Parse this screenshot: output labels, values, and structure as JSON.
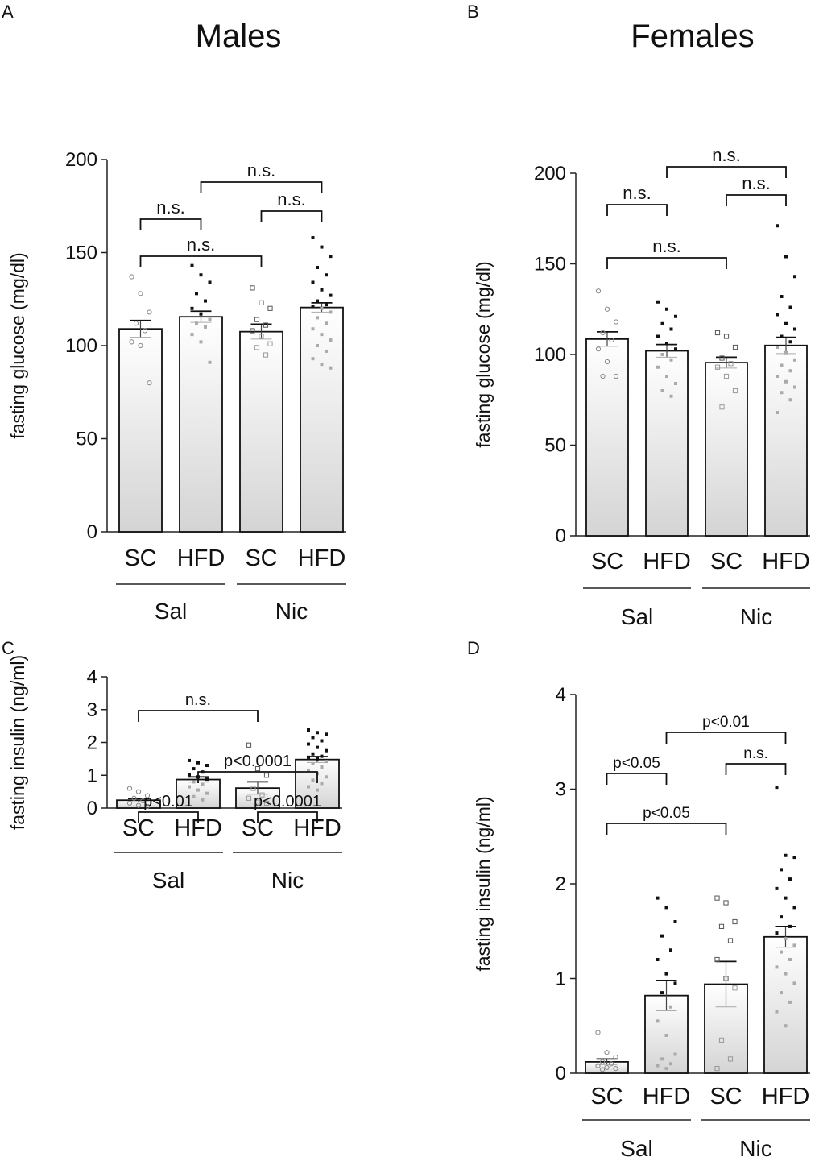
{
  "figure": {
    "column_titles": [
      "Males",
      "Females"
    ]
  },
  "chart_data": [
    {
      "panel": "A",
      "type": "bar",
      "title": "Males",
      "ylabel": "fasting glucose (mg/dl)",
      "ylim": [
        0,
        200
      ],
      "yticks": [
        "0",
        "50",
        "100",
        "150",
        "200"
      ],
      "categories": [
        "SC",
        "HFD",
        "SC",
        "HFD"
      ],
      "groups": [
        {
          "label": "Sal",
          "span": [
            0,
            1
          ]
        },
        {
          "label": "Nic",
          "span": [
            2,
            3
          ]
        }
      ],
      "values": [
        109,
        115.5,
        107.5,
        120.5
      ],
      "sem": [
        4.5,
        3,
        4,
        2.5
      ],
      "points": [
        [
          137,
          128,
          118,
          112,
          108,
          102,
          100,
          80
        ],
        [
          143,
          138,
          134,
          128,
          124,
          120,
          117,
          114,
          112,
          110,
          106,
          102,
          91
        ],
        [
          131,
          123,
          120,
          114,
          111,
          108,
          105,
          101,
          99,
          95
        ],
        [
          158,
          153,
          148,
          142,
          138,
          134,
          130,
          127,
          124,
          122,
          121,
          120,
          118,
          115,
          112,
          109,
          106,
          103,
          100,
          97,
          93,
          90,
          88
        ]
      ],
      "brackets": [
        {
          "from": 1,
          "to": 3,
          "label": "n.s."
        },
        {
          "from": 0,
          "to": 1,
          "label": "n.s."
        },
        {
          "from": 2,
          "to": 3,
          "label": "n.s."
        },
        {
          "from": 0,
          "to": 2,
          "label": "n.s."
        }
      ]
    },
    {
      "panel": "B",
      "type": "bar",
      "title": "Females",
      "ylabel": "fasting glucose (mg/dl)",
      "ylim": [
        0,
        200
      ],
      "yticks": [
        "0",
        "50",
        "100",
        "150",
        "200"
      ],
      "categories": [
        "SC",
        "HFD",
        "SC",
        "HFD"
      ],
      "groups": [
        {
          "label": "Sal",
          "span": [
            0,
            1
          ]
        },
        {
          "label": "Nic",
          "span": [
            2,
            3
          ]
        }
      ],
      "values": [
        108.5,
        102,
        95.5,
        105
      ],
      "sem": [
        4,
        3.5,
        3,
        4.5
      ],
      "points": [
        [
          135,
          125,
          118,
          112,
          108,
          103,
          96,
          88,
          88
        ],
        [
          129,
          125,
          121,
          117,
          114,
          110,
          106,
          103,
          100,
          97,
          93,
          88,
          84,
          80,
          77
        ],
        [
          112,
          110,
          104,
          98,
          95,
          93,
          88,
          80,
          71
        ],
        [
          171,
          154,
          143,
          132,
          126,
          122,
          117,
          114,
          110,
          107,
          104,
          101,
          97,
          94,
          91,
          88,
          85,
          82,
          79,
          75,
          68
        ]
      ],
      "brackets": [
        {
          "from": 1,
          "to": 3,
          "label": "n.s."
        },
        {
          "from": 0,
          "to": 1,
          "label": "n.s."
        },
        {
          "from": 2,
          "to": 3,
          "label": "n.s."
        },
        {
          "from": 0,
          "to": 2,
          "label": "n.s."
        }
      ]
    },
    {
      "panel": "C",
      "type": "bar",
      "ylabel": "fasting insulin (ng/ml)",
      "ylim": [
        0,
        4
      ],
      "yticks": [
        "0",
        "1",
        "2",
        "3",
        "4"
      ],
      "categories": [
        "SC",
        "HFD",
        "SC",
        "HFD"
      ],
      "groups": [
        {
          "label": "Sal",
          "span": [
            0,
            1
          ]
        },
        {
          "label": "Nic",
          "span": [
            2,
            3
          ]
        }
      ],
      "values": [
        0.24,
        0.87,
        0.61,
        1.48
      ],
      "sem": [
        0.05,
        0.08,
        0.19,
        0.09
      ],
      "points": [
        [
          0.6,
          0.5,
          0.38,
          0.3,
          0.22,
          0.15,
          0.08,
          0.05
        ],
        [
          1.45,
          1.38,
          1.3,
          1.2,
          1.1,
          1.02,
          0.95,
          0.88,
          0.8,
          0.72,
          0.65,
          0.55,
          0.45,
          0.35,
          0.25
        ],
        [
          1.92,
          1.2,
          1.0,
          0.6,
          0.4,
          0.3,
          0.18,
          0.15
        ],
        [
          2.38,
          2.3,
          2.25,
          2.15,
          2.05,
          1.95,
          1.85,
          1.75,
          1.65,
          1.58,
          1.55,
          1.5,
          1.42,
          1.35,
          1.25,
          1.15,
          1.05,
          0.95,
          0.85,
          0.75,
          0.65,
          0.55
        ]
      ],
      "brackets": [
        {
          "from": 0,
          "to": 2,
          "label": "n.s."
        },
        {
          "from": 1,
          "to": 3,
          "label": "p<0.0001"
        },
        {
          "from": 0,
          "to": 1,
          "label": "p<0.01"
        },
        {
          "from": 2,
          "to": 3,
          "label": "p<0.0001"
        }
      ]
    },
    {
      "panel": "D",
      "type": "bar",
      "ylabel": "fasting insulin (ng/ml)",
      "ylim": [
        0,
        4
      ],
      "yticks": [
        "0",
        "1",
        "2",
        "3",
        "4"
      ],
      "categories": [
        "SC",
        "HFD",
        "SC",
        "HFD"
      ],
      "groups": [
        {
          "label": "Sal",
          "span": [
            0,
            1
          ]
        },
        {
          "label": "Nic",
          "span": [
            2,
            3
          ]
        }
      ],
      "values": [
        0.12,
        0.82,
        0.94,
        1.44
      ],
      "sem": [
        0.03,
        0.16,
        0.24,
        0.11
      ],
      "points": [
        [
          0.43,
          0.22,
          0.17,
          0.12,
          0.1,
          0.08,
          0.06,
          0.05,
          0.04
        ],
        [
          1.85,
          1.75,
          1.6,
          1.45,
          1.3,
          1.2,
          1.05,
          0.95,
          0.85,
          0.7,
          0.55,
          0.4,
          0.2,
          0.15,
          0.1,
          0.08,
          0.05
        ],
        [
          1.85,
          1.8,
          1.6,
          1.55,
          1.4,
          1.2,
          1.0,
          0.9,
          0.35,
          0.15,
          0.05
        ],
        [
          3.02,
          2.3,
          2.28,
          2.15,
          2.05,
          1.95,
          1.85,
          1.75,
          1.65,
          1.55,
          1.48,
          1.42,
          1.35,
          1.28,
          1.2,
          1.12,
          1.05,
          0.95,
          0.85,
          0.75,
          0.65,
          0.5
        ]
      ],
      "brackets": [
        {
          "from": 1,
          "to": 3,
          "label": "p<0.01"
        },
        {
          "from": 0,
          "to": 1,
          "label": "p<0.05"
        },
        {
          "from": 2,
          "to": 3,
          "label": "n.s."
        },
        {
          "from": 0,
          "to": 2,
          "label": "p<0.05"
        }
      ]
    }
  ]
}
